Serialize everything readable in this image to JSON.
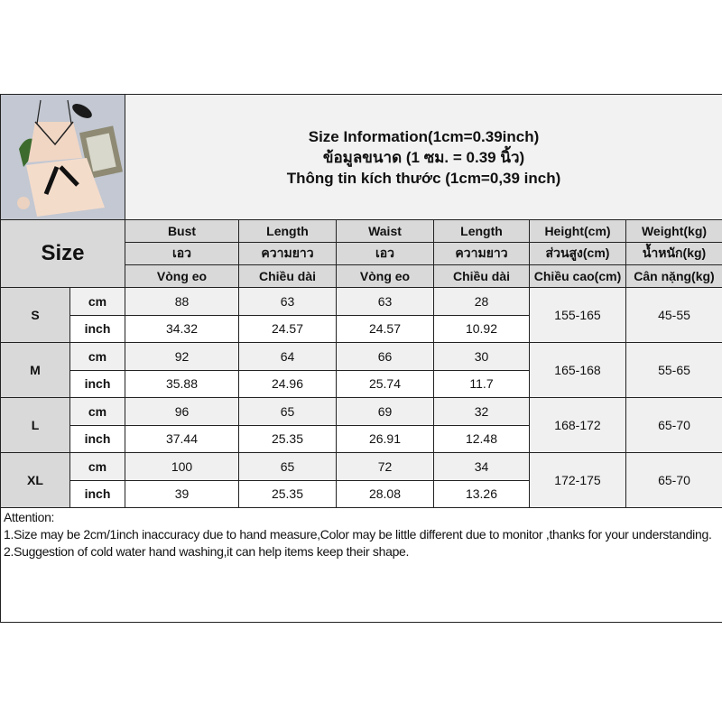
{
  "title": {
    "line1": "Size Information(1cm=0.39inch)",
    "line2": "ข้อมูลขนาด (1 ซม. = 0.39 นิ้ว)",
    "line3": "Thông tin kích thước (1cm=0,39 inch)"
  },
  "size_header": "Size",
  "columns": [
    {
      "en": "Bust",
      "th": "เอว",
      "vi": "Vòng eo"
    },
    {
      "en": "Length",
      "th": "ความยาว",
      "vi": "Chiều dài"
    },
    {
      "en": "Waist",
      "th": "เอว",
      "vi": "Vòng eo"
    },
    {
      "en": "Length",
      "th": "ความยาว",
      "vi": "Chiều dài"
    },
    {
      "en": "Height(cm)",
      "th": "ส่วนสูง(cm)",
      "vi": "Chiều cao(cm)"
    },
    {
      "en": "Weight(kg)",
      "th": "น้ำหนัก(kg)",
      "vi": "Cân nặng(kg)"
    }
  ],
  "units": {
    "cm": "cm",
    "inch": "inch"
  },
  "sizes": [
    {
      "label": "S",
      "cm": [
        "88",
        "63",
        "63",
        "28"
      ],
      "inch": [
        "34.32",
        "24.57",
        "24.57",
        "10.92"
      ],
      "height": "155-165",
      "weight": "45-55"
    },
    {
      "label": "M",
      "cm": [
        "92",
        "64",
        "66",
        "30"
      ],
      "inch": [
        "35.88",
        "24.96",
        "25.74",
        "11.7"
      ],
      "height": "165-168",
      "weight": "55-65"
    },
    {
      "label": "L",
      "cm": [
        "96",
        "65",
        "69",
        "32"
      ],
      "inch": [
        "37.44",
        "25.35",
        "26.91",
        "12.48"
      ],
      "height": "168-172",
      "weight": "65-70"
    },
    {
      "label": "XL",
      "cm": [
        "100",
        "65",
        "72",
        "34"
      ],
      "inch": [
        "39",
        "25.35",
        "28.08",
        "13.26"
      ],
      "height": "172-175",
      "weight": "65-70"
    }
  ],
  "attention": {
    "heading": "Attention:",
    "note1": "1.Size may be 2cm/1inch inaccuracy due to hand measure,Color may be little different due to monitor ,thanks for your understanding.",
    "note2": "2.Suggestion of cold water hand washing,it can help items keep their shape."
  },
  "colors": {
    "header_bg": "#d9d9d9",
    "title_bg": "#f2f2f2",
    "cm_row_bg": "#f0f0f0",
    "border": "#222222"
  }
}
